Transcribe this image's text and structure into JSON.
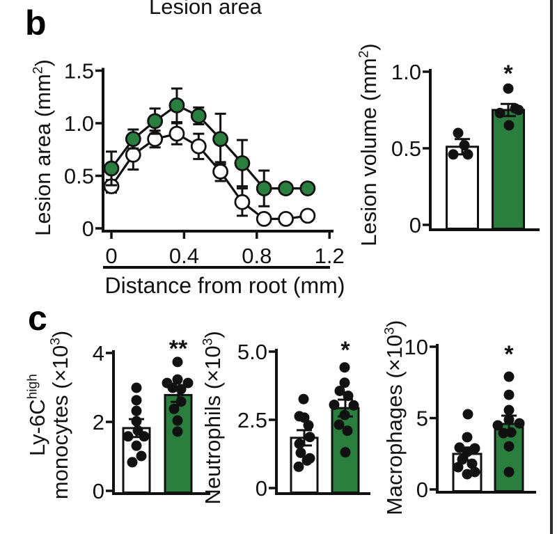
{
  "figure": {
    "background": "#ffffff",
    "right_border_color": "#2f2f2f",
    "green": "#2a7e3e",
    "ink": "#111111",
    "panel_b_label": "b",
    "panel_c_label": "c"
  },
  "chart_data": [
    {
      "id": "lesion-area-line",
      "type": "line",
      "title": "Lesion area",
      "ylabel": {
        "pre": "Lesion area (mm",
        "sup": "2",
        "post": ")"
      },
      "xlabel": "Distance from root (mm)",
      "xlim": [
        0,
        1.2
      ],
      "ylim": [
        0,
        1.5
      ],
      "grid": false,
      "legend": "none",
      "yticks": {
        "values": [
          0,
          0.5,
          1.0,
          1.5
        ],
        "labels": [
          "0",
          "0.5",
          "1.0",
          "1.5"
        ]
      },
      "xticks": {
        "values": [
          0,
          0.4,
          0.8,
          1.2
        ],
        "labels": [
          "0",
          "0.4",
          "0.8",
          "1.2"
        ]
      },
      "x": [
        0,
        0.12,
        0.24,
        0.36,
        0.48,
        0.6,
        0.72,
        0.84,
        0.96,
        1.08
      ],
      "series": [
        {
          "name": "open-circles",
          "marker": "open",
          "values": [
            0.4,
            0.7,
            0.85,
            0.9,
            0.78,
            0.54,
            0.25,
            0.09,
            0.09,
            0.12
          ],
          "errors": [
            0.06,
            0.14,
            0.08,
            0.1,
            0.12,
            0.09,
            0.13,
            0.03,
            0,
            0.04
          ]
        },
        {
          "name": "green-circles",
          "marker": "green",
          "values": [
            0.57,
            0.85,
            1.02,
            1.17,
            1.07,
            0.85,
            0.62,
            0.38,
            0.38,
            0.38
          ],
          "errors": [
            0.16,
            0.09,
            0.12,
            0.16,
            0.08,
            0.24,
            0.22,
            0.17,
            0,
            0
          ]
        }
      ]
    },
    {
      "id": "lesion-volume-bar",
      "type": "bar",
      "ylabel": {
        "pre": "Lesion volume (mm",
        "sup": "2",
        "post": ")"
      },
      "ylim": [
        0,
        1.0
      ],
      "yticks": {
        "values": [
          0,
          0.5,
          1.0
        ],
        "labels": [
          "0",
          "0.5",
          "1.0"
        ]
      },
      "bars": [
        {
          "group": "open",
          "fill": "white",
          "value": 0.51,
          "err": 0.05,
          "sig": "",
          "dots": [
            [
              -6,
              0.6
            ],
            [
              3,
              0.52
            ],
            [
              -13,
              0.46
            ],
            [
              8,
              0.46
            ]
          ]
        },
        {
          "group": "green",
          "fill": "green",
          "value": 0.75,
          "err": 0.04,
          "sig": "*",
          "dots": [
            [
              0,
              0.89
            ],
            [
              10,
              0.76
            ],
            [
              -12,
              0.73
            ],
            [
              15,
              0.75
            ],
            [
              1,
              0.65
            ]
          ]
        }
      ]
    },
    {
      "id": "monocytes-bar",
      "type": "bar",
      "ylabel_lines": [
        {
          "pre": "Ly-6C",
          "sup": "high",
          "post": ""
        },
        {
          "pre": "monocytes (×10",
          "sup": "3",
          "post": ")"
        }
      ],
      "ylim": [
        0,
        4
      ],
      "yticks": {
        "values": [
          0,
          2,
          4
        ],
        "labels": [
          "0",
          "2",
          "4"
        ]
      },
      "bars": [
        {
          "group": "open",
          "fill": "white",
          "value": 1.82,
          "err": 0.26,
          "sig": "",
          "dots": [
            [
              0,
              2.99
            ],
            [
              0,
              2.63
            ],
            [
              0,
              2.32
            ],
            [
              0,
              2.02
            ],
            [
              2,
              1.75
            ],
            [
              -12,
              1.58
            ],
            [
              11,
              1.58
            ],
            [
              0,
              1.31
            ],
            [
              7,
              1.01
            ],
            [
              -6,
              0.83
            ]
          ]
        },
        {
          "group": "green",
          "fill": "green",
          "value": 2.78,
          "err": 0.2,
          "sig": "**",
          "dots": [
            [
              -1,
              3.74
            ],
            [
              -16,
              3.13
            ],
            [
              -1,
              3.23
            ],
            [
              14,
              3.13
            ],
            [
              -8,
              2.99
            ],
            [
              4,
              2.95
            ],
            [
              4,
              2.59
            ],
            [
              -6,
              2.38
            ],
            [
              -1,
              2.04
            ],
            [
              -1,
              1.72
            ]
          ]
        }
      ]
    },
    {
      "id": "neutrophils-bar",
      "type": "bar",
      "ylabel_lines": [
        {
          "pre": "Neutrophils (×10",
          "sup": "3",
          "post": ")"
        }
      ],
      "ylim": [
        0,
        5
      ],
      "yticks": {
        "values": [
          0,
          2.5,
          5.0
        ],
        "labels": [
          "0",
          "2.5",
          "5.0"
        ]
      },
      "bars": [
        {
          "group": "open",
          "fill": "white",
          "value": 1.84,
          "err": 0.28,
          "sig": "",
          "dots": [
            [
              -1,
              3.26
            ],
            [
              -7,
              2.63
            ],
            [
              0,
              2.58
            ],
            [
              6,
              2.3
            ],
            [
              8,
              1.87
            ],
            [
              -7,
              1.62
            ],
            [
              -5,
              1.29
            ],
            [
              8,
              1.09
            ],
            [
              4,
              1.01
            ],
            [
              -8,
              0.78
            ]
          ]
        },
        {
          "group": "green",
          "fill": "green",
          "value": 2.93,
          "err": 0.31,
          "sig": "*",
          "dots": [
            [
              -1,
              4.42
            ],
            [
              -1,
              3.86
            ],
            [
              -8,
              3.56
            ],
            [
              4,
              3.38
            ],
            [
              -16,
              3.05
            ],
            [
              12,
              3.03
            ],
            [
              -1,
              2.68
            ],
            [
              -9,
              2.32
            ],
            [
              3,
              2.1
            ],
            [
              0,
              1.31
            ]
          ]
        }
      ]
    },
    {
      "id": "macrophages-bar",
      "type": "bar",
      "ylabel_lines": [
        {
          "pre": "Macrophages (×10",
          "sup": "3",
          "post": ")"
        }
      ],
      "ylim": [
        0,
        10
      ],
      "yticks": {
        "values": [
          0,
          5,
          10
        ],
        "labels": [
          "0",
          "5",
          "10"
        ]
      },
      "bars": [
        {
          "group": "open",
          "fill": "white",
          "value": 2.49,
          "err": 0.45,
          "sig": "",
          "dots": [
            [
              1,
              5.27
            ],
            [
              0,
              3.66
            ],
            [
              -11,
              2.93
            ],
            [
              11,
              2.88
            ],
            [
              0,
              2.63
            ],
            [
              -7,
              2.1
            ],
            [
              7,
              1.8
            ],
            [
              -13,
              1.56
            ],
            [
              11,
              1.22
            ],
            [
              0,
              1.07
            ]
          ]
        },
        {
          "group": "green",
          "fill": "green",
          "value": 4.59,
          "err": 0.58,
          "sig": "*",
          "dots": [
            [
              0,
              7.9
            ],
            [
              0,
              6.63
            ],
            [
              0,
              5.56
            ],
            [
              0,
              4.88
            ],
            [
              -16,
              4.49
            ],
            [
              15,
              4.63
            ],
            [
              -8,
              3.95
            ],
            [
              3,
              4.0
            ],
            [
              0,
              3.02
            ],
            [
              0,
              1.22
            ]
          ]
        }
      ]
    }
  ]
}
